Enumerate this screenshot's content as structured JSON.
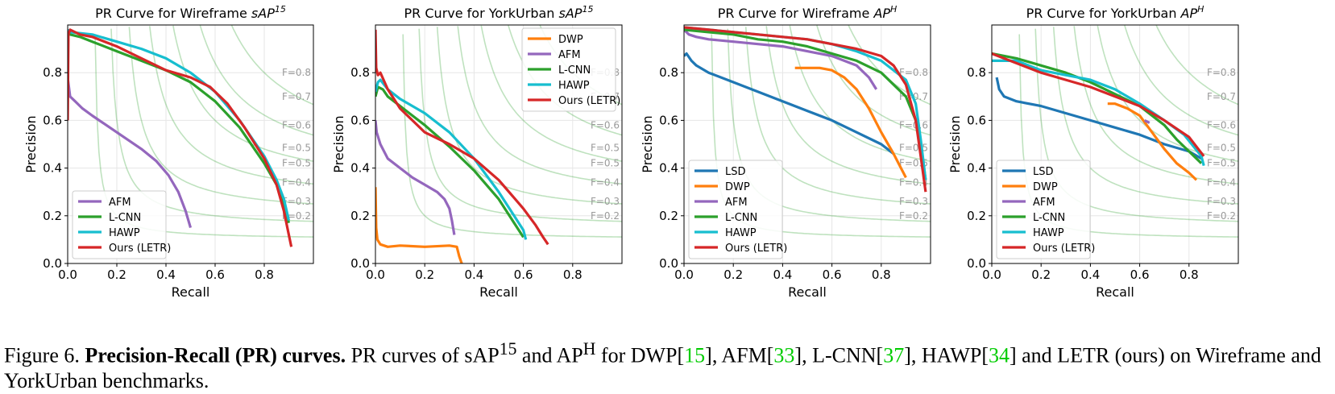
{
  "chart_data": [
    {
      "type": "line",
      "title": "PR Curve for Wireframe sAP",
      "title_sup": "15",
      "xlabel": "Recall",
      "ylabel": "Precision",
      "xlim": [
        0,
        1
      ],
      "ylim": [
        0,
        1
      ],
      "xticks": [
        "0.0",
        "0.2",
        "0.4",
        "0.6",
        "0.8"
      ],
      "yticks": [
        "0.0",
        "0.2",
        "0.4",
        "0.6",
        "0.8"
      ],
      "iso_f": [
        "F=0.8",
        "F=0.7",
        "F=0.6",
        "F=0.5",
        "F=0.5",
        "F=0.4",
        "F=0.3",
        "F=0.2"
      ],
      "legend_position": "lower-left",
      "series": [
        {
          "name": "AFM",
          "color": "#9467bd",
          "x": [
            0.0,
            0.01,
            0.03,
            0.06,
            0.1,
            0.2,
            0.3,
            0.36,
            0.41,
            0.45,
            0.48,
            0.5
          ],
          "y": [
            0.78,
            0.7,
            0.68,
            0.65,
            0.62,
            0.55,
            0.48,
            0.43,
            0.37,
            0.3,
            0.22,
            0.15
          ]
        },
        {
          "name": "L-CNN",
          "color": "#2ca02c",
          "x": [
            0.0,
            0.01,
            0.05,
            0.1,
            0.2,
            0.3,
            0.4,
            0.5,
            0.6,
            0.7,
            0.8,
            0.85,
            0.88,
            0.9
          ],
          "y": [
            0.97,
            0.96,
            0.95,
            0.93,
            0.89,
            0.85,
            0.81,
            0.76,
            0.68,
            0.57,
            0.42,
            0.33,
            0.24,
            0.17
          ]
        },
        {
          "name": "HAWP",
          "color": "#17becf",
          "x": [
            0.0,
            0.01,
            0.1,
            0.2,
            0.3,
            0.4,
            0.5,
            0.6,
            0.7,
            0.8,
            0.85,
            0.88,
            0.9
          ],
          "y": [
            0.98,
            0.97,
            0.96,
            0.93,
            0.9,
            0.86,
            0.8,
            0.72,
            0.6,
            0.45,
            0.35,
            0.27,
            0.18
          ]
        },
        {
          "name": "Ours (LETR)",
          "color": "#d62728",
          "x": [
            0.0,
            0.003,
            0.01,
            0.05,
            0.1,
            0.2,
            0.3,
            0.4,
            0.5,
            0.58,
            0.65,
            0.72,
            0.8,
            0.85,
            0.88,
            0.9,
            0.91
          ],
          "y": [
            0.6,
            0.96,
            0.98,
            0.96,
            0.95,
            0.91,
            0.86,
            0.81,
            0.78,
            0.74,
            0.67,
            0.57,
            0.44,
            0.33,
            0.22,
            0.12,
            0.07
          ]
        }
      ]
    },
    {
      "type": "line",
      "title": "PR Curve for YorkUrban sAP",
      "title_sup": "15",
      "xlabel": "Recall",
      "ylabel": "Precision",
      "xlim": [
        0,
        1
      ],
      "ylim": [
        0,
        1
      ],
      "xticks": [
        "0.0",
        "0.2",
        "0.4",
        "0.6",
        "0.8"
      ],
      "yticks": [
        "0.0",
        "0.2",
        "0.4",
        "0.6",
        "0.8"
      ],
      "iso_f": [
        "F=0.8",
        "F=0.7",
        "F=0.6",
        "F=0.5",
        "F=0.5",
        "F=0.4",
        "F=0.3",
        "F=0.2"
      ],
      "legend_position": "upper-right",
      "series": [
        {
          "name": "DWP",
          "color": "#ff7f0e",
          "x": [
            0.0,
            0.003,
            0.008,
            0.02,
            0.05,
            0.1,
            0.2,
            0.3,
            0.33,
            0.34,
            0.35
          ],
          "y": [
            0.32,
            0.15,
            0.1,
            0.08,
            0.07,
            0.075,
            0.07,
            0.075,
            0.07,
            0.03,
            0.0
          ]
        },
        {
          "name": "AFM",
          "color": "#9467bd",
          "x": [
            0.0,
            0.005,
            0.02,
            0.05,
            0.1,
            0.15,
            0.2,
            0.25,
            0.28,
            0.3,
            0.31,
            0.32
          ],
          "y": [
            0.6,
            0.55,
            0.5,
            0.44,
            0.4,
            0.36,
            0.33,
            0.3,
            0.27,
            0.23,
            0.18,
            0.12
          ]
        },
        {
          "name": "L-CNN",
          "color": "#2ca02c",
          "x": [
            0.0,
            0.01,
            0.03,
            0.05,
            0.1,
            0.15,
            0.2,
            0.3,
            0.4,
            0.5,
            0.55,
            0.6
          ],
          "y": [
            0.7,
            0.74,
            0.73,
            0.7,
            0.66,
            0.62,
            0.58,
            0.49,
            0.39,
            0.27,
            0.19,
            0.11
          ]
        },
        {
          "name": "HAWP",
          "color": "#17becf",
          "x": [
            0.0,
            0.01,
            0.02,
            0.05,
            0.1,
            0.15,
            0.2,
            0.3,
            0.4,
            0.5,
            0.55,
            0.6,
            0.61
          ],
          "y": [
            0.72,
            0.76,
            0.77,
            0.73,
            0.69,
            0.66,
            0.63,
            0.55,
            0.44,
            0.3,
            0.22,
            0.14,
            0.1
          ]
        },
        {
          "name": "Ours (LETR)",
          "color": "#d62728",
          "x": [
            0.0,
            0.003,
            0.01,
            0.02,
            0.05,
            0.1,
            0.15,
            0.2,
            0.3,
            0.4,
            0.5,
            0.6,
            0.65,
            0.68,
            0.7
          ],
          "y": [
            0.98,
            0.82,
            0.79,
            0.8,
            0.73,
            0.65,
            0.6,
            0.55,
            0.5,
            0.44,
            0.35,
            0.23,
            0.16,
            0.11,
            0.08
          ]
        }
      ]
    },
    {
      "type": "line",
      "title": "PR Curve for Wireframe AP",
      "title_sup": "H",
      "xlabel": "Recall",
      "ylabel": "Precision",
      "xlim": [
        0,
        1
      ],
      "ylim": [
        0,
        1
      ],
      "xticks": [
        "0.0",
        "0.2",
        "0.4",
        "0.6",
        "0.8"
      ],
      "yticks": [
        "0.0",
        "0.2",
        "0.4",
        "0.6",
        "0.8"
      ],
      "iso_f": [
        "F=0.8",
        "F=0.7",
        "F=0.6",
        "F=0.5",
        "F=0.5",
        "F=0.4",
        "F=0.3",
        "F=0.2"
      ],
      "legend_position": "lower-left",
      "series": [
        {
          "name": "LSD",
          "color": "#1f77b4",
          "x": [
            0.0,
            0.01,
            0.03,
            0.05,
            0.1,
            0.2,
            0.3,
            0.4,
            0.5,
            0.6,
            0.7,
            0.8,
            0.85
          ],
          "y": [
            0.87,
            0.88,
            0.85,
            0.83,
            0.8,
            0.76,
            0.72,
            0.68,
            0.64,
            0.6,
            0.55,
            0.5,
            0.46
          ]
        },
        {
          "name": "DWP",
          "color": "#ff7f0e",
          "x": [
            0.45,
            0.5,
            0.55,
            0.6,
            0.65,
            0.7,
            0.75,
            0.8,
            0.85,
            0.88,
            0.9
          ],
          "y": [
            0.82,
            0.82,
            0.82,
            0.81,
            0.78,
            0.73,
            0.65,
            0.55,
            0.46,
            0.4,
            0.36
          ]
        },
        {
          "name": "AFM",
          "color": "#9467bd",
          "x": [
            0.0,
            0.02,
            0.05,
            0.1,
            0.2,
            0.3,
            0.4,
            0.5,
            0.6,
            0.7,
            0.75,
            0.78
          ],
          "y": [
            0.98,
            0.96,
            0.95,
            0.94,
            0.93,
            0.92,
            0.91,
            0.89,
            0.87,
            0.83,
            0.78,
            0.73
          ]
        },
        {
          "name": "L-CNN",
          "color": "#2ca02c",
          "x": [
            0.0,
            0.1,
            0.2,
            0.3,
            0.4,
            0.5,
            0.6,
            0.7,
            0.8,
            0.9,
            0.94,
            0.96,
            0.98
          ],
          "y": [
            0.98,
            0.97,
            0.96,
            0.94,
            0.93,
            0.91,
            0.88,
            0.85,
            0.8,
            0.7,
            0.6,
            0.5,
            0.35
          ]
        },
        {
          "name": "HAWP",
          "color": "#17becf",
          "x": [
            0.0,
            0.1,
            0.2,
            0.3,
            0.4,
            0.5,
            0.6,
            0.7,
            0.8,
            0.9,
            0.94,
            0.96,
            0.98
          ],
          "y": [
            0.99,
            0.98,
            0.97,
            0.96,
            0.95,
            0.94,
            0.92,
            0.89,
            0.85,
            0.77,
            0.67,
            0.52,
            0.35
          ]
        },
        {
          "name": "Ours (LETR)",
          "color": "#d62728",
          "x": [
            0.0,
            0.1,
            0.2,
            0.3,
            0.4,
            0.5,
            0.6,
            0.7,
            0.8,
            0.85,
            0.9,
            0.94,
            0.96,
            0.98
          ],
          "y": [
            0.99,
            0.98,
            0.97,
            0.96,
            0.95,
            0.94,
            0.92,
            0.9,
            0.87,
            0.83,
            0.75,
            0.6,
            0.45,
            0.3
          ]
        }
      ]
    },
    {
      "type": "line",
      "title": "PR Curve for YorkUrban AP",
      "title_sup": "H",
      "xlabel": "Recall",
      "ylabel": "Precision",
      "xlim": [
        0,
        1
      ],
      "ylim": [
        0,
        1
      ],
      "xticks": [
        "0.0",
        "0.2",
        "0.4",
        "0.6",
        "0.8"
      ],
      "yticks": [
        "0.0",
        "0.2",
        "0.4",
        "0.6",
        "0.8"
      ],
      "iso_f": [
        "F=0.8",
        "F=0.7",
        "F=0.6",
        "F=0.5",
        "F=0.5",
        "F=0.4",
        "F=0.3",
        "F=0.2"
      ],
      "legend_position": "lower-left",
      "series": [
        {
          "name": "LSD",
          "color": "#1f77b4",
          "x": [
            0.02,
            0.03,
            0.05,
            0.1,
            0.2,
            0.3,
            0.4,
            0.5,
            0.6,
            0.7,
            0.8,
            0.85
          ],
          "y": [
            0.78,
            0.73,
            0.7,
            0.68,
            0.66,
            0.63,
            0.6,
            0.57,
            0.54,
            0.5,
            0.47,
            0.44
          ]
        },
        {
          "name": "DWP",
          "color": "#ff7f0e",
          "x": [
            0.47,
            0.5,
            0.55,
            0.6,
            0.65,
            0.7,
            0.75,
            0.8,
            0.83
          ],
          "y": [
            0.67,
            0.67,
            0.65,
            0.62,
            0.55,
            0.48,
            0.42,
            0.38,
            0.35
          ]
        },
        {
          "name": "AFM",
          "color": "#9467bd",
          "x": [
            0.62,
            0.64
          ],
          "y": [
            0.6,
            0.59
          ]
        },
        {
          "name": "L-CNN",
          "color": "#2ca02c",
          "x": [
            0.0,
            0.1,
            0.2,
            0.3,
            0.4,
            0.5,
            0.6,
            0.7,
            0.75,
            0.8,
            0.85
          ],
          "y": [
            0.88,
            0.86,
            0.83,
            0.8,
            0.76,
            0.71,
            0.66,
            0.58,
            0.52,
            0.47,
            0.42
          ]
        },
        {
          "name": "HAWP",
          "color": "#17becf",
          "x": [
            0.0,
            0.06,
            0.1,
            0.2,
            0.3,
            0.4,
            0.5,
            0.6,
            0.7,
            0.78,
            0.85,
            0.86
          ],
          "y": [
            0.85,
            0.85,
            0.85,
            0.81,
            0.79,
            0.77,
            0.73,
            0.67,
            0.6,
            0.54,
            0.45,
            0.41
          ]
        },
        {
          "name": "Ours (LETR)",
          "color": "#d62728",
          "x": [
            0.0,
            0.1,
            0.2,
            0.3,
            0.4,
            0.5,
            0.6,
            0.7,
            0.8,
            0.86
          ],
          "y": [
            0.88,
            0.84,
            0.8,
            0.77,
            0.74,
            0.7,
            0.66,
            0.6,
            0.53,
            0.45
          ]
        }
      ]
    }
  ],
  "caption": {
    "prefix": "Figure 6. ",
    "bold": "Precision-Recall (PR) curves.",
    "t1": " PR curves of sAP",
    "s1": "15",
    "t2": " and AP",
    "s2": "H",
    "t3": "  for DWP[",
    "r1": "15",
    "t4": "], AFM[",
    "r2": "33",
    "t5": "], L-CNN[",
    "r3": "37",
    "t6": "], HAWP[",
    "r4": "34",
    "t7": "] and LETR (ours) on Wireframe and YorkUrban benchmarks."
  }
}
